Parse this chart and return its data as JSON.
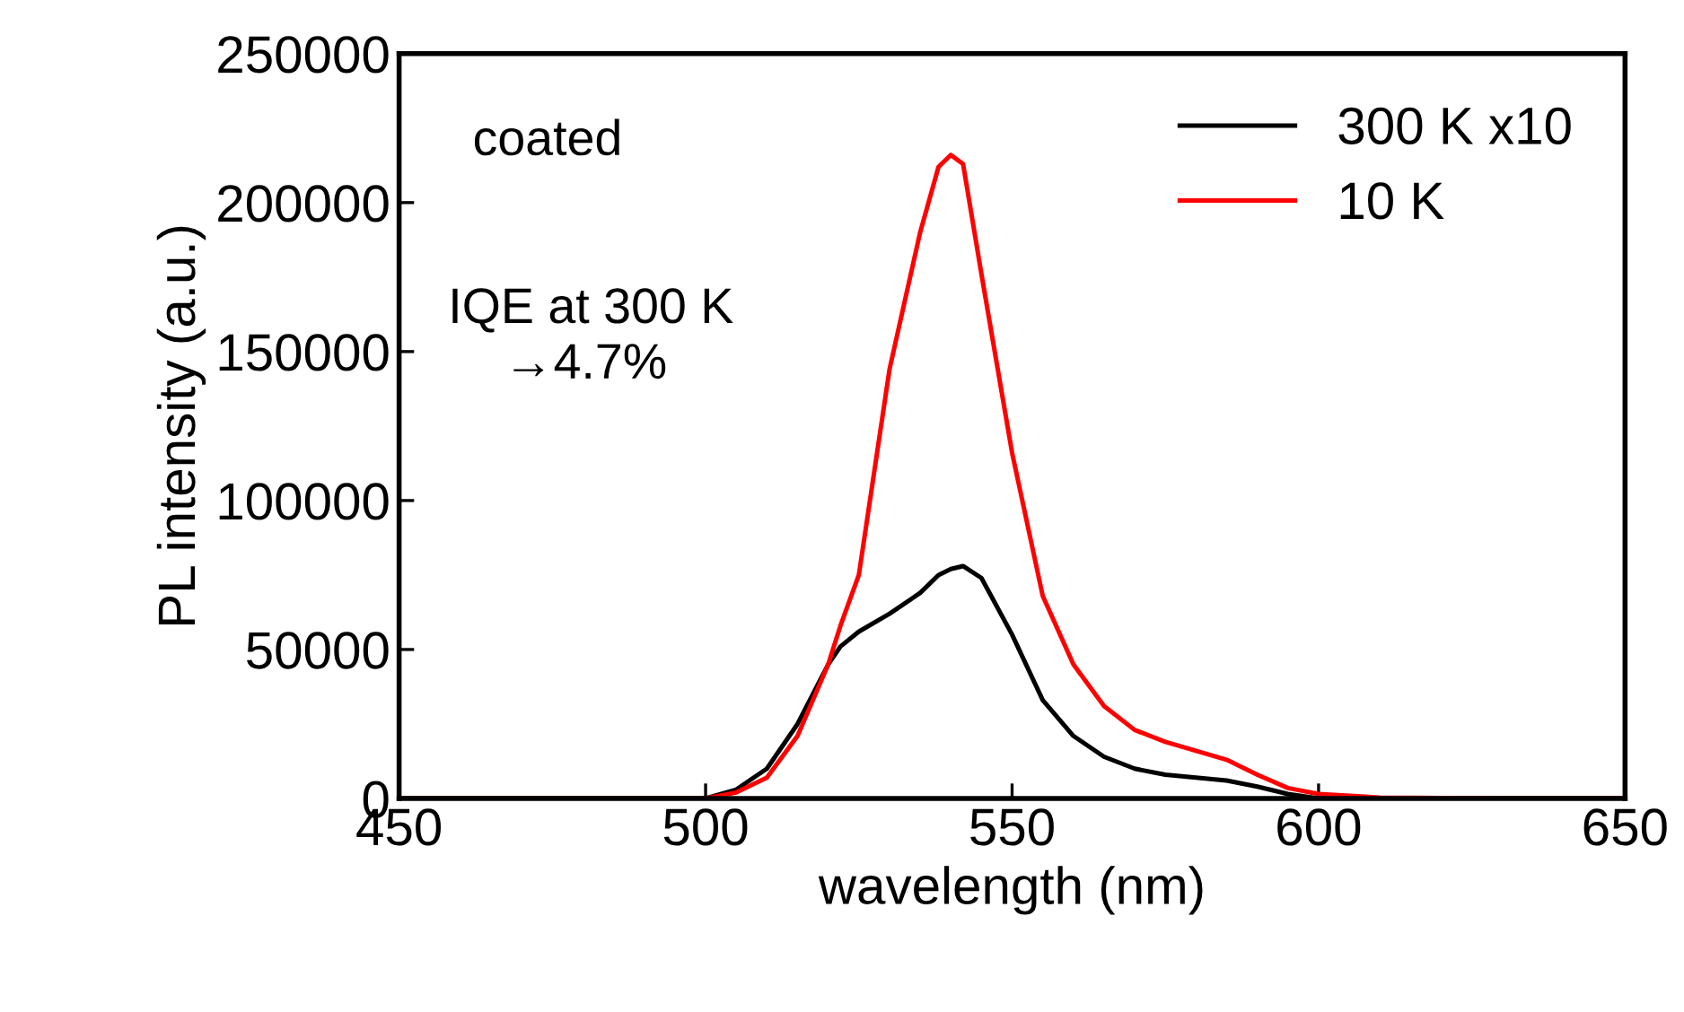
{
  "chart_data": {
    "type": "line",
    "xlabel": "wavelength (nm)",
    "ylabel": "PL intensity (a.u.)",
    "x": [
      450,
      480,
      500,
      505,
      510,
      515,
      520,
      522,
      525,
      530,
      535,
      538,
      540,
      542,
      545,
      550,
      555,
      560,
      565,
      570,
      575,
      580,
      585,
      590,
      595,
      600,
      610,
      630,
      650
    ],
    "series": [
      {
        "name": "300 K x10",
        "color": "#000000",
        "values": [
          0,
          0,
          0,
          3000,
          10000,
          25000,
          45000,
          51000,
          56000,
          62000,
          69000,
          75000,
          77000,
          78000,
          74000,
          55000,
          33000,
          21000,
          14000,
          10000,
          8000,
          7000,
          6000,
          4000,
          1500,
          0,
          0,
          0,
          0
        ]
      },
      {
        "name": "10 K",
        "color": "#ff0000",
        "values": [
          0,
          0,
          0,
          2000,
          7000,
          21000,
          45000,
          58000,
          75000,
          144000,
          190000,
          212000,
          216000,
          213000,
          176000,
          116000,
          68000,
          45000,
          31000,
          23000,
          19000,
          16000,
          13000,
          8000,
          3500,
          1500,
          300,
          0,
          0
        ]
      }
    ],
    "xlim": [
      450,
      650
    ],
    "xticks": [
      450,
      500,
      550,
      600,
      650
    ],
    "ylim": [
      0,
      250000
    ],
    "yticks": [
      0,
      50000,
      100000,
      150000,
      200000,
      250000
    ],
    "grid": false,
    "legend": "top right",
    "annotations": [
      "coated",
      "IQE at 300 K\n    →4.7%"
    ]
  }
}
